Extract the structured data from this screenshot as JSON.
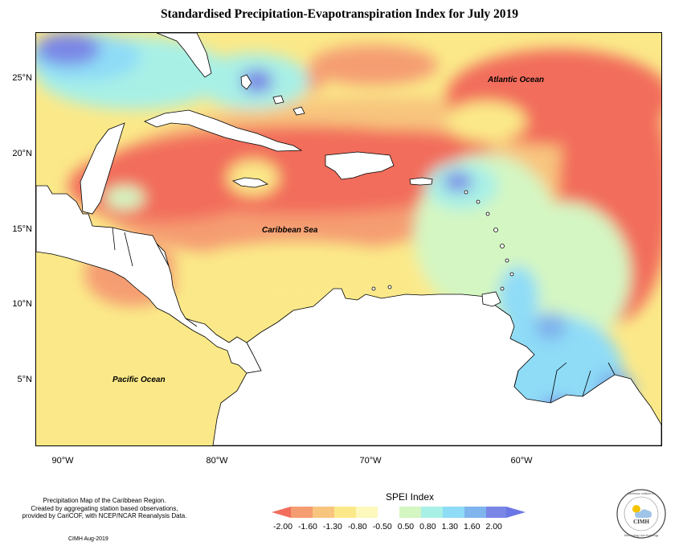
{
  "title": "Standardised Precipitation-Evapotranspiration Index for July 2019",
  "map": {
    "latitude_labels": [
      "25°N",
      "20°N",
      "15°N",
      "10°N",
      "5°N"
    ],
    "longitude_labels": [
      "90°W",
      "80°W",
      "70°W",
      "60°W"
    ],
    "ocean_labels": {
      "atlantic": "Atlantic Ocean",
      "caribbean": "Caribbean Sea",
      "pacific": "Pacific Ocean"
    }
  },
  "legend": {
    "title": "SPEI Index",
    "ticks": [
      "-2.00",
      "-1.60",
      "-1.30",
      "-0.80",
      "-0.50",
      "0.50",
      "0.80",
      "1.30",
      "1.60",
      "2.00"
    ],
    "colors": [
      "#f26d5b",
      "#f59d72",
      "#f8c57e",
      "#fbe989",
      "#fdf8bc",
      "#d4f6c2",
      "#a8f0e6",
      "#8fdcf7",
      "#7fb4ed",
      "#7a86e6",
      "#6b77e4"
    ]
  },
  "credit": {
    "line1": "Precipitation Map of the Caribbean Region.",
    "line2": "Created by aggregating station based observations,",
    "line3": "provided by CariCOF, with NCEP/NCAR Reanalysis Data.",
    "date": "CIMH Aug-2019"
  },
  "logo": {
    "text_top": "Caribbean Institute for",
    "text_mid": "CIMH",
    "text_bottom": "Meteorology and Hydrology"
  }
}
